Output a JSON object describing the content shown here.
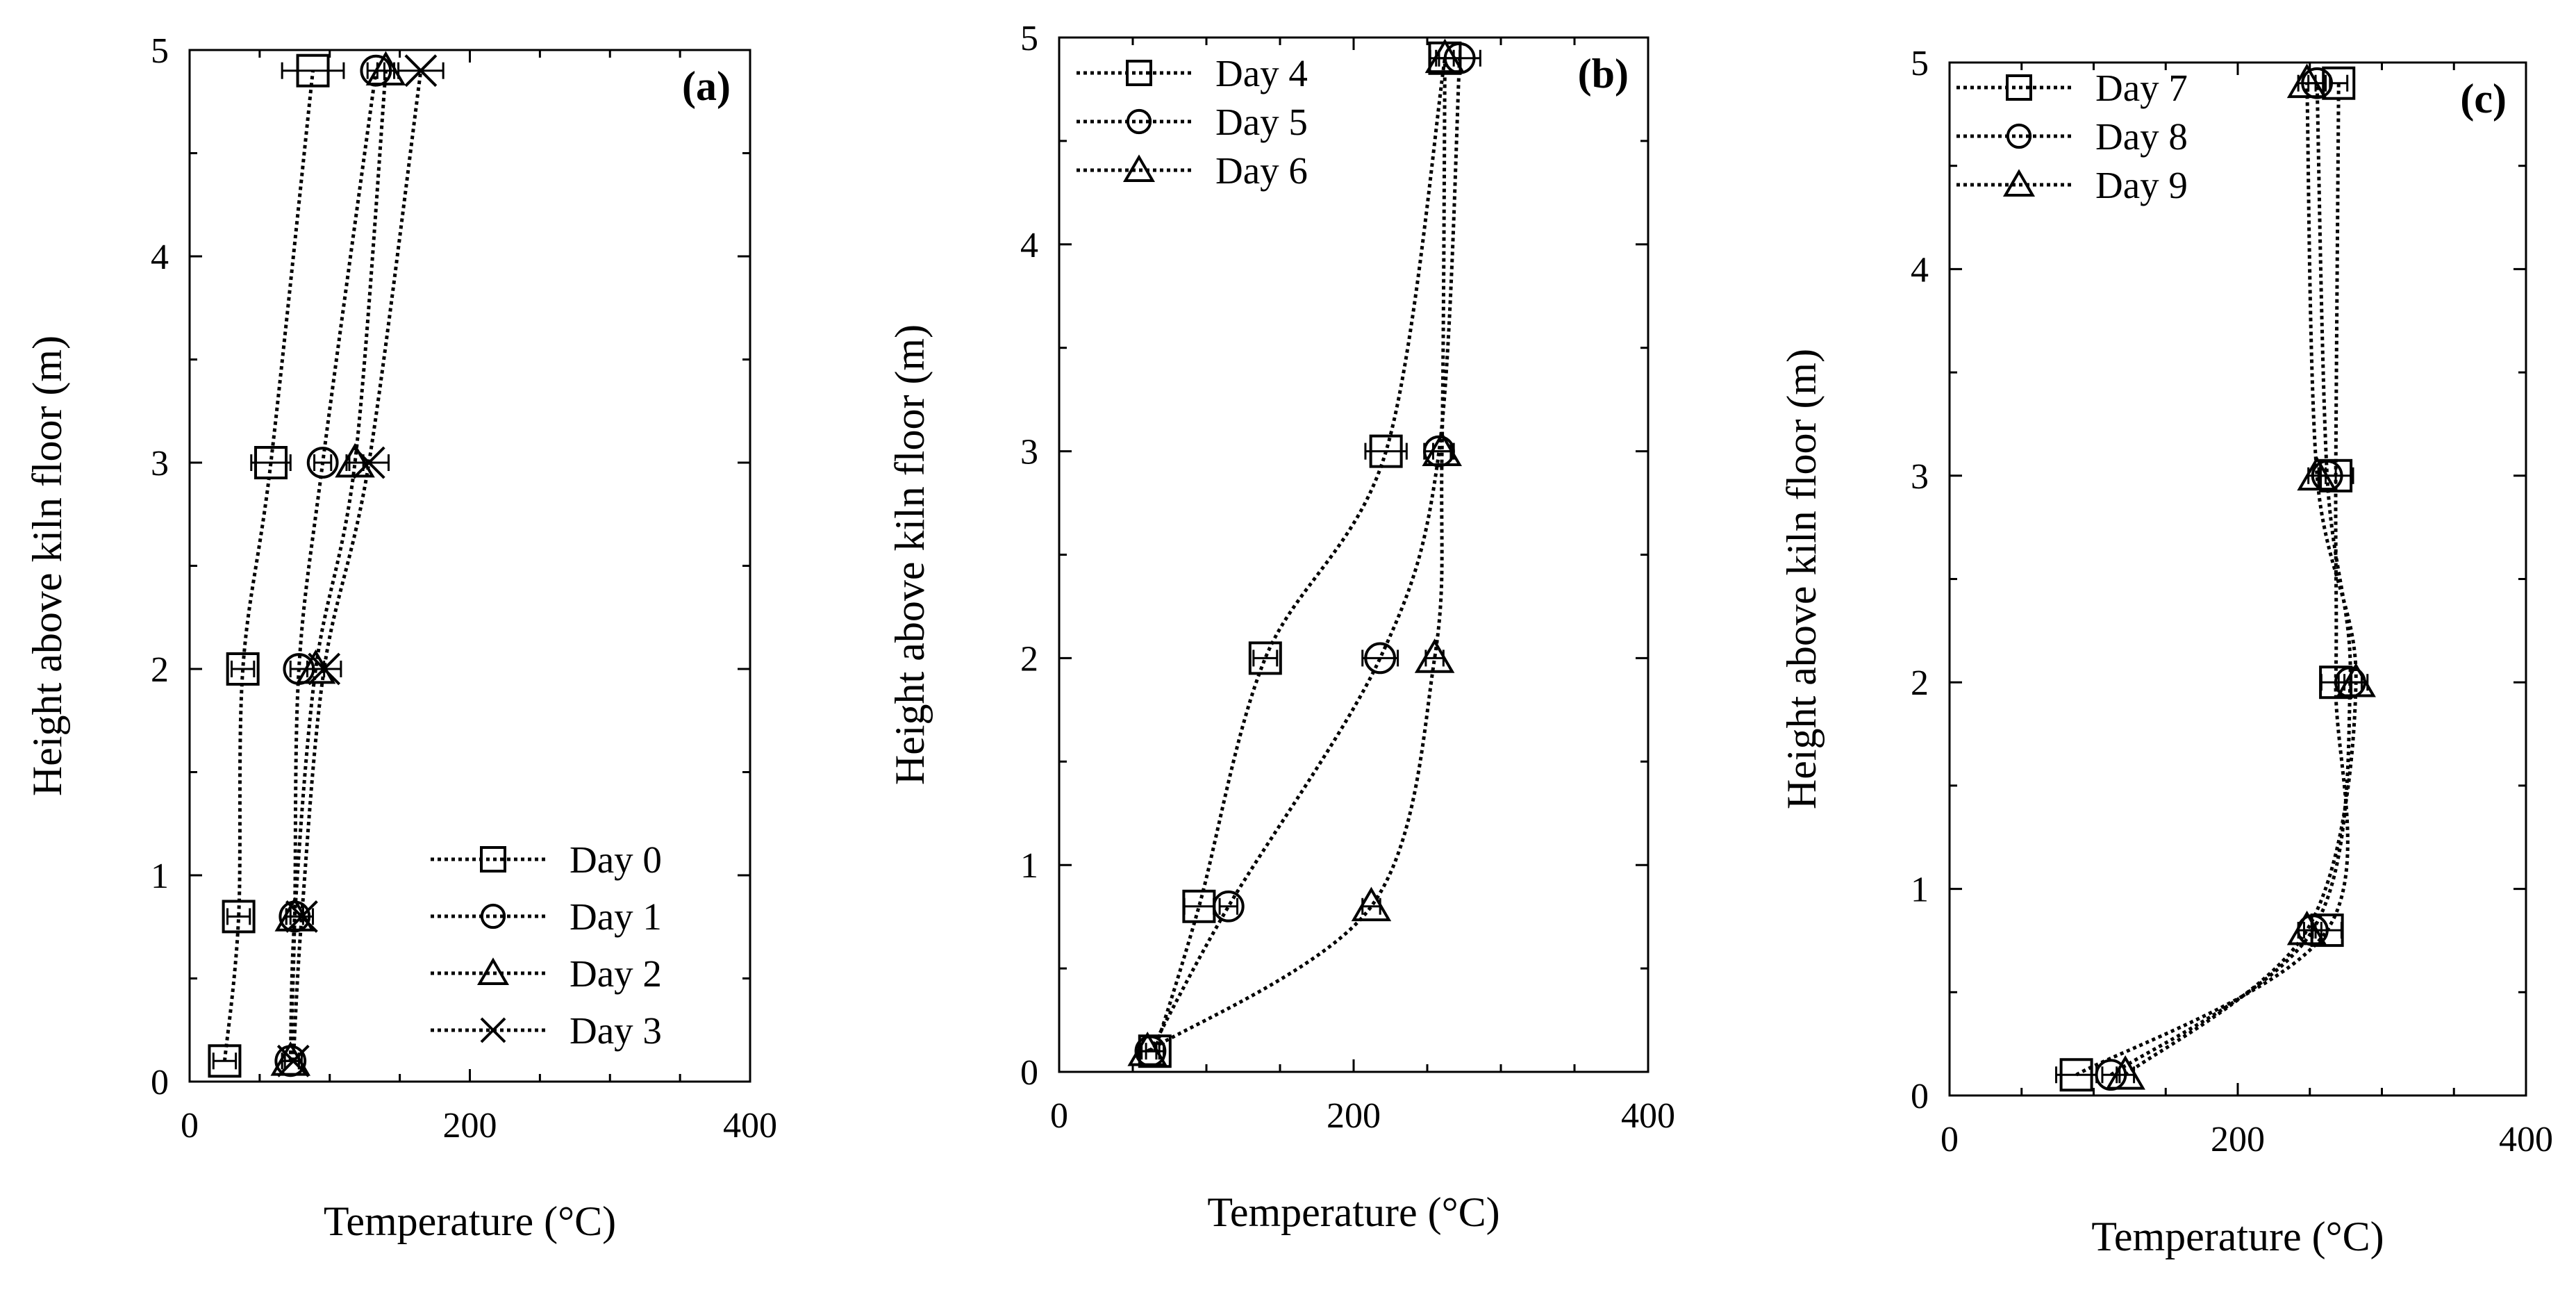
{
  "chart_data": [
    {
      "type": "line",
      "panel_label": "(a)",
      "xlabel": "Temperature (°C)",
      "ylabel": "Height  above kiln  floor (m)",
      "xlim": [
        0,
        400
      ],
      "ylim": [
        0,
        5
      ],
      "xticks": [
        0,
        200,
        400
      ],
      "yticks": [
        0,
        1,
        2,
        3,
        4,
        5
      ],
      "legend_position": "bottom-right",
      "series": [
        {
          "name": "Day 0",
          "marker": "square",
          "points": [
            [
              25,
              0.1
            ],
            [
              35,
              0.8
            ],
            [
              38,
              2.0
            ],
            [
              58,
              3.0
            ],
            [
              88,
              4.9
            ]
          ],
          "xerr": [
            8,
            8,
            8,
            14,
            22
          ]
        },
        {
          "name": "Day 1",
          "marker": "circle",
          "points": [
            [
              72,
              0.1
            ],
            [
              75,
              0.8
            ],
            [
              78,
              2.0
            ],
            [
              95,
              3.0
            ],
            [
              133,
              4.9
            ]
          ],
          "xerr": [
            6,
            6,
            6,
            6,
            6
          ]
        },
        {
          "name": "Day 2",
          "marker": "triangle",
          "points": [
            [
              72,
              0.1
            ],
            [
              75,
              0.8
            ],
            [
              90,
              2.0
            ],
            [
              118,
              3.0
            ],
            [
              140,
              4.9
            ]
          ],
          "xerr": [
            6,
            6,
            6,
            6,
            6
          ]
        },
        {
          "name": "Day 3",
          "marker": "x",
          "points": [
            [
              74,
              0.1
            ],
            [
              80,
              0.8
            ],
            [
              96,
              2.0
            ],
            [
              128,
              3.0
            ],
            [
              165,
              4.9
            ]
          ],
          "xerr": [
            6,
            8,
            12,
            14,
            16
          ]
        }
      ]
    },
    {
      "type": "line",
      "panel_label": "(b)",
      "xlabel": "Temperature (°C)",
      "ylabel": "Height  above kiln  floor (m)",
      "xlim": [
        0,
        400
      ],
      "ylim": [
        0,
        5
      ],
      "xticks": [
        0,
        200,
        400
      ],
      "yticks": [
        0,
        1,
        2,
        3,
        4,
        5
      ],
      "legend_position": "top-left",
      "series": [
        {
          "name": "Day 4",
          "marker": "square",
          "points": [
            [
              65,
              0.1
            ],
            [
              95,
              0.8
            ],
            [
              140,
              2.0
            ],
            [
              222,
              3.0
            ],
            [
              262,
              4.9
            ]
          ],
          "xerr": [
            6,
            10,
            8,
            14,
            10
          ]
        },
        {
          "name": "Day 5",
          "marker": "circle",
          "points": [
            [
              62,
              0.1
            ],
            [
              115,
              0.8
            ],
            [
              218,
              2.0
            ],
            [
              258,
              3.0
            ],
            [
              272,
              4.9
            ]
          ],
          "xerr": [
            6,
            6,
            12,
            10,
            14
          ]
        },
        {
          "name": "Day 6",
          "marker": "triangle",
          "points": [
            [
              60,
              0.1
            ],
            [
              212,
              0.8
            ],
            [
              255,
              2.0
            ],
            [
              260,
              3.0
            ],
            [
              262,
              4.9
            ]
          ],
          "xerr": [
            6,
            6,
            6,
            6,
            6
          ]
        }
      ]
    },
    {
      "type": "line",
      "panel_label": "(c)",
      "xlabel": "Temperature (°C)",
      "ylabel": "Height  above kiln  floor (m)",
      "xlim": [
        0,
        400
      ],
      "ylim": [
        0,
        5
      ],
      "xticks": [
        0,
        200,
        400
      ],
      "yticks": [
        0,
        1,
        2,
        3,
        4,
        5
      ],
      "legend_position": "top-left",
      "series": [
        {
          "name": "Day 7",
          "marker": "square",
          "points": [
            [
              88,
              0.1
            ],
            [
              262,
              0.8
            ],
            [
              268,
              2.0
            ],
            [
              268,
              3.0
            ],
            [
              270,
              4.9
            ]
          ],
          "xerr": [
            14,
            10,
            10,
            12,
            6
          ]
        },
        {
          "name": "Day 8",
          "marker": "circle",
          "points": [
            [
              112,
              0.1
            ],
            [
              252,
              0.8
            ],
            [
              278,
              2.0
            ],
            [
              262,
              3.0
            ],
            [
              255,
              4.9
            ]
          ],
          "xerr": [
            6,
            6,
            8,
            6,
            6
          ]
        },
        {
          "name": "Day 9",
          "marker": "triangle",
          "points": [
            [
              122,
              0.1
            ],
            [
              248,
              0.8
            ],
            [
              282,
              2.0
            ],
            [
              255,
              3.0
            ],
            [
              248,
              4.9
            ]
          ],
          "xerr": [
            6,
            6,
            8,
            6,
            6
          ]
        }
      ]
    }
  ]
}
